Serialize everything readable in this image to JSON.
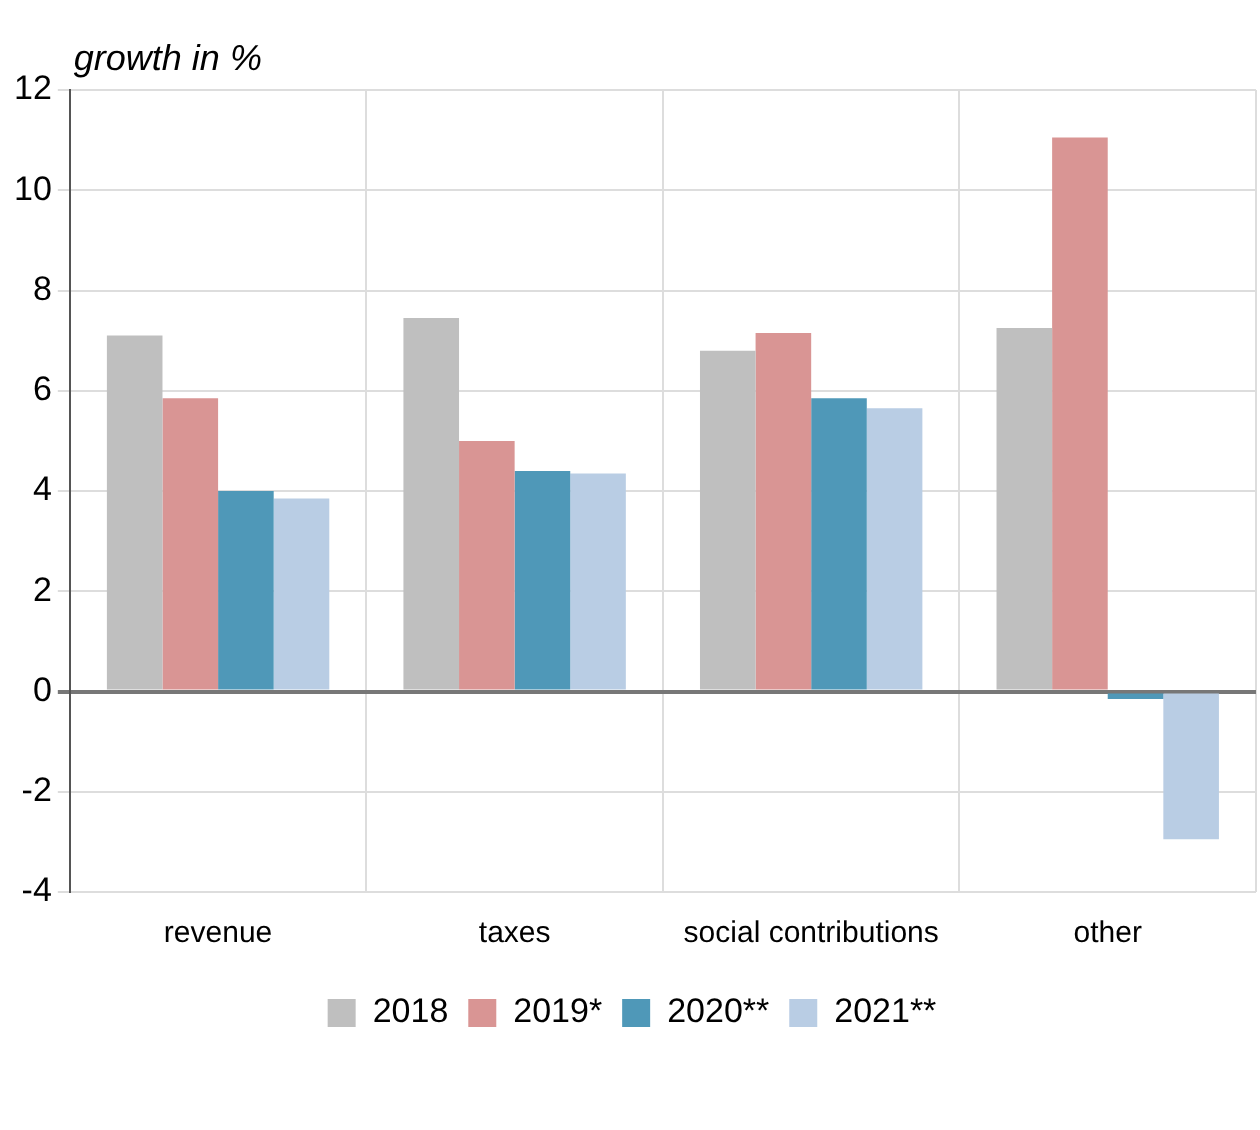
{
  "chart_data": {
    "type": "bar",
    "ylabel": "growth in %",
    "categories": [
      "revenue",
      "taxes",
      "social contributions",
      "other"
    ],
    "series": [
      {
        "name": "2018",
        "color": "#bfbfbf",
        "values": [
          7.1,
          7.45,
          6.8,
          7.25
        ]
      },
      {
        "name": "2019*",
        "color": "#d99594",
        "values": [
          5.85,
          5.0,
          7.15,
          11.05
        ]
      },
      {
        "name": "2020**",
        "color": "#4f98b8",
        "values": [
          4.0,
          4.4,
          5.85,
          -0.15
        ]
      },
      {
        "name": "2021**",
        "color": "#b9cde4",
        "values": [
          3.85,
          4.35,
          5.65,
          -2.95
        ]
      }
    ],
    "ylim": [
      -4,
      12
    ],
    "yticks": [
      -4,
      -2,
      0,
      2,
      4,
      6,
      8,
      10,
      12
    ],
    "grid": true,
    "legend": "bottom"
  }
}
